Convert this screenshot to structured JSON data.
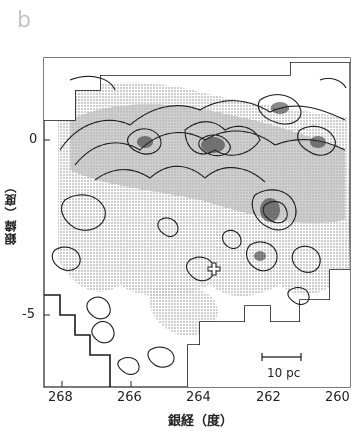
{
  "figure": {
    "panel_label": "b",
    "ylabel": "銀緯（度）",
    "xlabel": "銀経（度）",
    "y_ticks": [
      "0",
      "-5"
    ],
    "x_ticks": [
      "268",
      "266",
      "264",
      "262",
      "260"
    ],
    "scale_bar_label": "10 pc"
  },
  "colors": {
    "contour": "#1a1a1a",
    "stipple": "#9a9a9a",
    "background": "#ffffff"
  },
  "markers": [
    {
      "name": "cross-marker",
      "shape": "plus"
    }
  ]
}
